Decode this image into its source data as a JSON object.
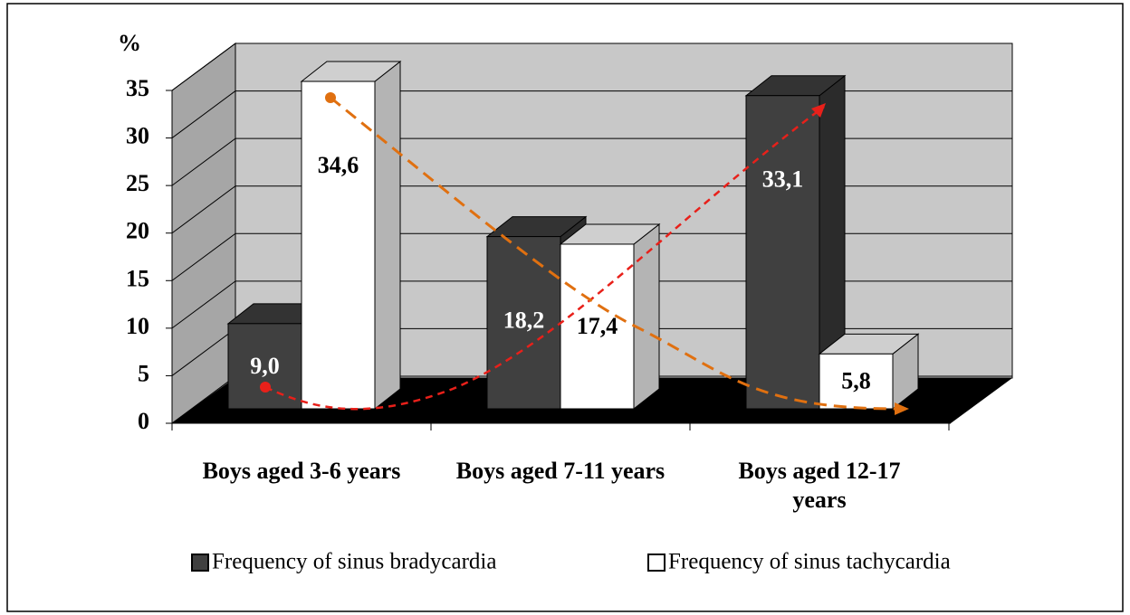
{
  "chart_data": {
    "type": "bar3d",
    "y_label": "%",
    "categories": [
      "Boys aged 3-6 years",
      "Boys aged 7-11 years",
      "Boys aged 12-17 years"
    ],
    "series": [
      {
        "name": "Frequency of sinus bradycardia",
        "color": "#404040",
        "values": [
          9.0,
          18.2,
          33.1
        ],
        "value_labels": [
          "9,0",
          "18,2",
          "33,1"
        ]
      },
      {
        "name": "Frequency of sinus tachycardia",
        "color": "#ffffff",
        "values": [
          34.6,
          17.4,
          5.8
        ],
        "value_labels": [
          "34,6",
          "17,4",
          "5,8"
        ]
      }
    ],
    "ylim": [
      0,
      35
    ],
    "yticks": [
      0,
      5,
      10,
      15,
      20,
      25,
      30,
      35
    ],
    "grid": true,
    "legend": "bottom"
  }
}
